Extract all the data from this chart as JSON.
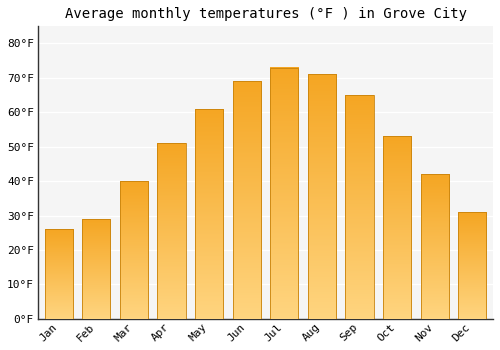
{
  "title": "Average monthly temperatures (°F ) in Grove City",
  "months": [
    "Jan",
    "Feb",
    "Mar",
    "Apr",
    "May",
    "Jun",
    "Jul",
    "Aug",
    "Sep",
    "Oct",
    "Nov",
    "Dec"
  ],
  "values": [
    26,
    29,
    40,
    51,
    61,
    69,
    73,
    71,
    65,
    53,
    42,
    31
  ],
  "bar_color_top": "#F5A623",
  "bar_color_bottom": "#FFD580",
  "bar_edge_color": "#C8820A",
  "background_color": "#FFFFFF",
  "plot_bg_color": "#F5F5F5",
  "grid_color": "#FFFFFF",
  "ylim": [
    0,
    85
  ],
  "yticks": [
    0,
    10,
    20,
    30,
    40,
    50,
    60,
    70,
    80
  ],
  "ytick_labels": [
    "0°F",
    "10°F",
    "20°F",
    "30°F",
    "40°F",
    "50°F",
    "60°F",
    "70°F",
    "80°F"
  ],
  "title_fontsize": 10,
  "tick_fontsize": 8,
  "font_family": "monospace",
  "bar_width": 0.75
}
